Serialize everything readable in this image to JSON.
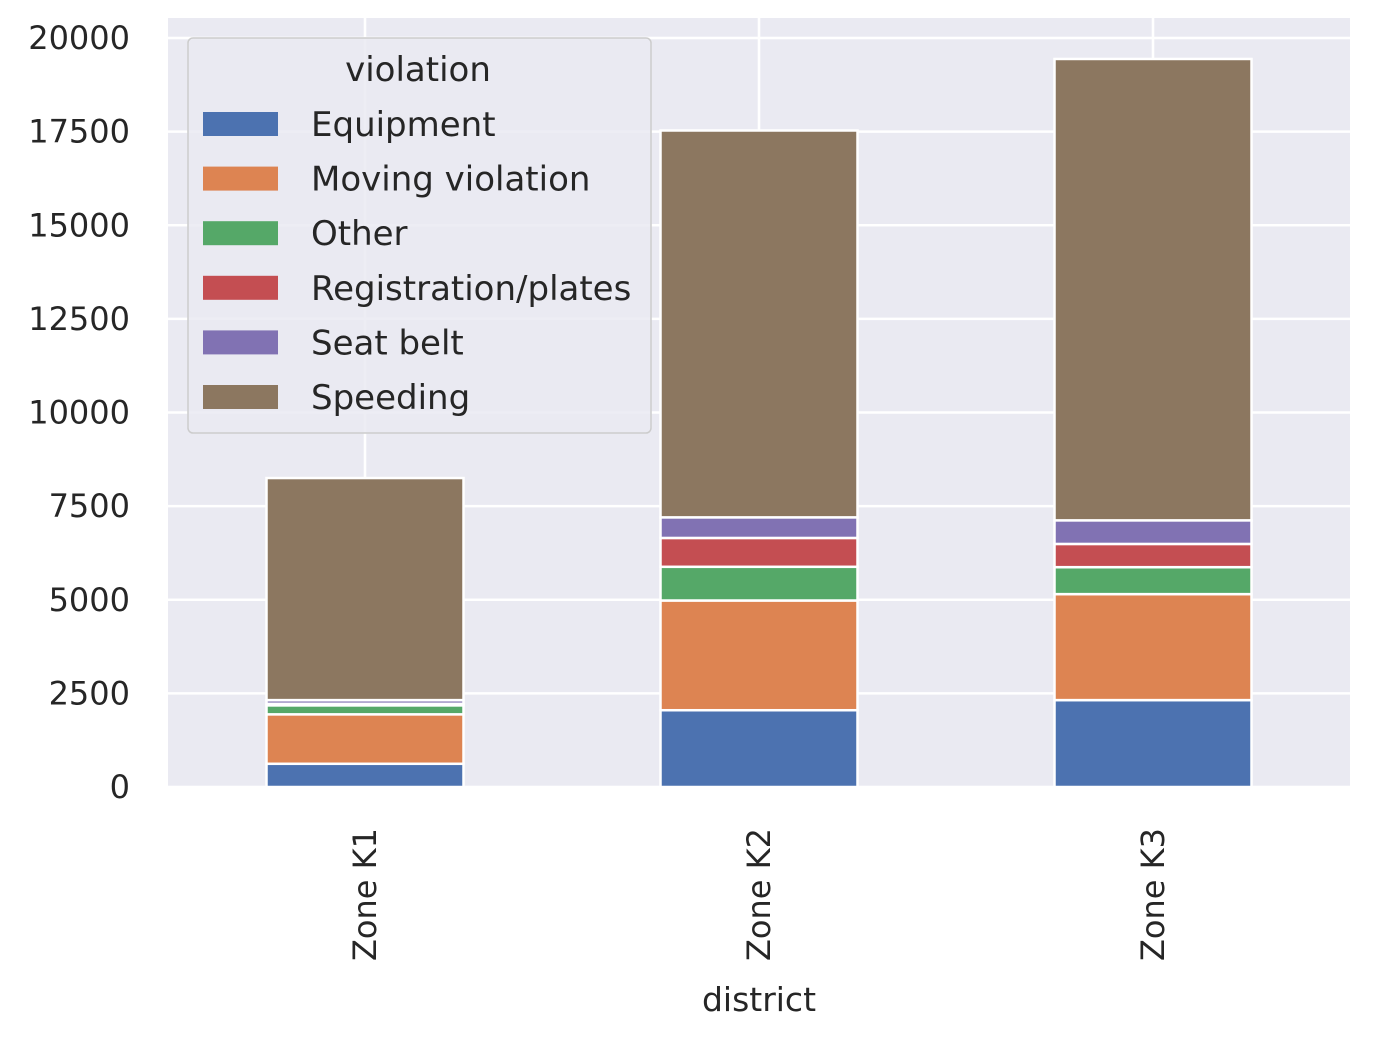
{
  "chart_data": {
    "type": "bar",
    "stacked": true,
    "categories": [
      "Zone K1",
      "Zone K2",
      "Zone K3"
    ],
    "series": [
      {
        "name": "Equipment",
        "color": "#4c72b0",
        "values": [
          620,
          2050,
          2320
        ]
      },
      {
        "name": "Moving violation",
        "color": "#dd8452",
        "values": [
          1320,
          2930,
          2830
        ]
      },
      {
        "name": "Other",
        "color": "#55a868",
        "values": [
          240,
          900,
          720
        ]
      },
      {
        "name": "Registration/plates",
        "color": "#c44e52",
        "values": [
          40,
          770,
          620
        ]
      },
      {
        "name": "Seat belt",
        "color": "#8172b3",
        "values": [
          100,
          550,
          630
        ]
      },
      {
        "name": "Speeding",
        "color": "#8c7760",
        "values": [
          5930,
          10330,
          12320
        ]
      }
    ],
    "xlabel": "district",
    "ylabel": "",
    "ylim": [
      0,
      20000
    ],
    "yticks": [
      "0",
      "2500",
      "5000",
      "7500",
      "10000",
      "12500",
      "15000",
      "17500",
      "20000"
    ],
    "ytick_values": [
      0,
      2500,
      5000,
      7500,
      10000,
      12500,
      15000,
      17500,
      20000
    ],
    "legend": {
      "title": "violation",
      "placement": "top-left"
    },
    "grid": true,
    "colors": {
      "plot_background": "#eaeaf2",
      "grid": "#ffffff"
    }
  }
}
